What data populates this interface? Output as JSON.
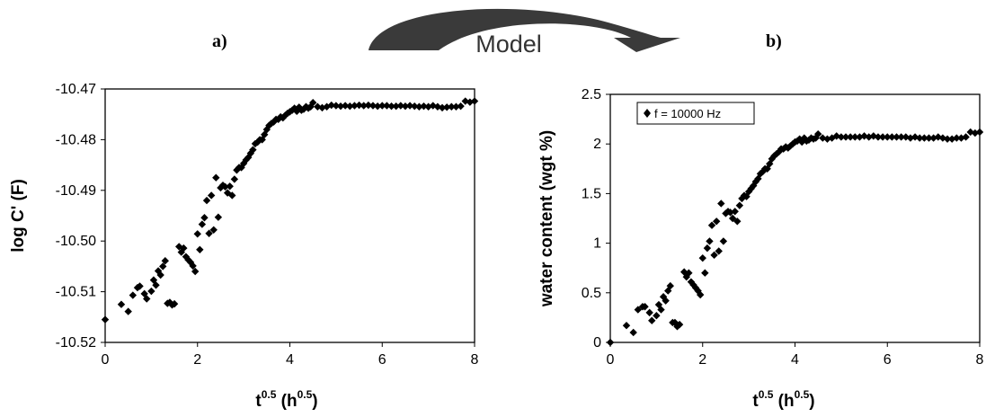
{
  "panel_labels": {
    "a": "a)",
    "b": "b)"
  },
  "arrow": {
    "label": "Model",
    "color": "#3a3a3a"
  },
  "chart_data": [
    {
      "id": "a",
      "type": "scatter",
      "title": "",
      "xlabel": {
        "base": "t",
        "base_sup": "0.5",
        "unit_open": " (h",
        "unit_sup": "0.5",
        "unit_close": ")"
      },
      "ylabel": "log C' (F)",
      "xlim": [
        0,
        8
      ],
      "ylim": [
        -10.52,
        -10.47
      ],
      "xticks": [
        0,
        2,
        4,
        6,
        8
      ],
      "yticks": [
        -10.52,
        -10.51,
        -10.5,
        -10.49,
        -10.48,
        -10.47
      ],
      "ytick_labels": [
        "-10.52",
        "-10.51",
        "-10.50",
        "-10.49",
        "-10.48",
        "-10.47"
      ],
      "marker": "diamond",
      "marker_color": "#000000",
      "grid": false,
      "series": [
        {
          "x": [
            0,
            0.35,
            0.5,
            0.6,
            0.7,
            0.75,
            0.85,
            0.9,
            1.0,
            1.05,
            1.1,
            1.15,
            1.2,
            1.25,
            1.3,
            1.35,
            1.4,
            1.45,
            1.5,
            1.6,
            1.65,
            1.7,
            1.75,
            1.8,
            1.85,
            1.9,
            1.95,
            2.0,
            2.05,
            2.1,
            2.15,
            2.2,
            2.25,
            2.3,
            2.35,
            2.4,
            2.45,
            2.5,
            2.55,
            2.6,
            2.65,
            2.7,
            2.75,
            2.8,
            2.85,
            2.9,
            2.95,
            3.0,
            3.05,
            3.1,
            3.15,
            3.2,
            3.25,
            3.3,
            3.35,
            3.4,
            3.45,
            3.5,
            3.55,
            3.6,
            3.65,
            3.7,
            3.75,
            3.8,
            3.85,
            3.9,
            3.95,
            4.0,
            4.05,
            4.1,
            4.15,
            4.2,
            4.25,
            4.3,
            4.35,
            4.4,
            4.45,
            4.5,
            4.6,
            4.7,
            4.8,
            4.9,
            5.0,
            5.1,
            5.2,
            5.3,
            5.4,
            5.5,
            5.6,
            5.7,
            5.8,
            5.9,
            6.0,
            6.1,
            6.2,
            6.3,
            6.4,
            6.5,
            6.6,
            6.7,
            6.8,
            6.9,
            7.0,
            7.1,
            7.2,
            7.3,
            7.4,
            7.5,
            7.6,
            7.7,
            7.8,
            7.9,
            8.0
          ],
          "y": [
            -10.5155,
            -10.5125,
            -10.5139,
            -10.5107,
            -10.5092,
            -10.5089,
            -10.5104,
            -10.5114,
            -10.5099,
            -10.5077,
            -10.5087,
            -10.5059,
            -10.5067,
            -10.505,
            -10.5039,
            -10.5123,
            -10.5121,
            -10.5126,
            -10.5124,
            -10.5011,
            -10.5022,
            -10.5014,
            -10.5031,
            -10.5037,
            -10.5042,
            -10.5049,
            -10.506,
            -10.4986,
            -10.5017,
            -10.4967,
            -10.4954,
            -10.492,
            -10.4985,
            -10.491,
            -10.4978,
            -10.4875,
            -10.4953,
            -10.4895,
            -10.489,
            -10.4893,
            -10.4905,
            -10.4892,
            -10.491,
            -10.4878,
            -10.486,
            -10.4855,
            -10.4855,
            -10.4847,
            -10.484,
            -10.4835,
            -10.4827,
            -10.482,
            -10.4808,
            -10.4805,
            -10.48,
            -10.48,
            -10.479,
            -10.478,
            -10.4772,
            -10.4768,
            -10.4765,
            -10.476,
            -10.476,
            -10.4755,
            -10.4757,
            -10.4752,
            -10.4748,
            -10.4745,
            -10.4742,
            -10.4738,
            -10.4744,
            -10.4736,
            -10.4742,
            -10.474,
            -10.4735,
            -10.4738,
            -10.4735,
            -10.4727,
            -10.4735,
            -10.4737,
            -10.4735,
            -10.4732,
            -10.4733,
            -10.4734,
            -10.4733,
            -10.4734,
            -10.4733,
            -10.4732,
            -10.4733,
            -10.4732,
            -10.4733,
            -10.4734,
            -10.4733,
            -10.4733,
            -10.4734,
            -10.4734,
            -10.4733,
            -10.4734,
            -10.4733,
            -10.4734,
            -10.4735,
            -10.4734,
            -10.4735,
            -10.4733,
            -10.4735,
            -10.4737,
            -10.4736,
            -10.4735,
            -10.4735,
            -10.4734,
            -10.4724,
            -10.4726,
            -10.4724
          ]
        }
      ]
    },
    {
      "id": "b",
      "type": "scatter",
      "title": "",
      "xlabel": {
        "base": "t",
        "base_sup": "0.5",
        "unit_open": " (h",
        "unit_sup": "0.5",
        "unit_close": ")"
      },
      "ylabel": "water content (wgt %)",
      "xlim": [
        0,
        8
      ],
      "ylim": [
        0,
        2.5
      ],
      "xticks": [
        0,
        2,
        4,
        6,
        8
      ],
      "yticks": [
        0,
        0.5,
        1,
        1.5,
        2,
        2.5
      ],
      "ytick_labels": [
        "0",
        "0.5",
        "1",
        "1.5",
        "2",
        "2.5"
      ],
      "marker": "diamond",
      "marker_color": "#000000",
      "grid": false,
      "legend": {
        "label": "f = 10000 Hz",
        "placement": "top-left"
      },
      "series": [
        {
          "name": "f = 10000 Hz",
          "x": [
            0,
            0.35,
            0.5,
            0.6,
            0.7,
            0.75,
            0.85,
            0.9,
            1.0,
            1.05,
            1.1,
            1.15,
            1.2,
            1.25,
            1.3,
            1.35,
            1.4,
            1.45,
            1.5,
            1.6,
            1.65,
            1.7,
            1.75,
            1.8,
            1.85,
            1.9,
            1.95,
            2.0,
            2.05,
            2.1,
            2.15,
            2.2,
            2.25,
            2.3,
            2.35,
            2.4,
            2.45,
            2.5,
            2.55,
            2.6,
            2.65,
            2.7,
            2.75,
            2.8,
            2.85,
            2.9,
            2.95,
            3.0,
            3.05,
            3.1,
            3.15,
            3.2,
            3.25,
            3.3,
            3.35,
            3.4,
            3.45,
            3.5,
            3.55,
            3.6,
            3.65,
            3.7,
            3.75,
            3.8,
            3.85,
            3.9,
            3.95,
            4.0,
            4.05,
            4.1,
            4.15,
            4.2,
            4.25,
            4.3,
            4.35,
            4.4,
            4.45,
            4.5,
            4.6,
            4.7,
            4.8,
            4.9,
            5.0,
            5.1,
            5.2,
            5.3,
            5.4,
            5.5,
            5.6,
            5.7,
            5.8,
            5.9,
            6.0,
            6.1,
            6.2,
            6.3,
            6.4,
            6.5,
            6.6,
            6.7,
            6.8,
            6.9,
            7.0,
            7.1,
            7.2,
            7.3,
            7.4,
            7.5,
            7.6,
            7.7,
            7.8,
            7.9,
            8.0
          ],
          "y": [
            0.0,
            0.17,
            0.1,
            0.33,
            0.36,
            0.36,
            0.3,
            0.22,
            0.27,
            0.38,
            0.33,
            0.46,
            0.42,
            0.52,
            0.57,
            0.2,
            0.2,
            0.16,
            0.18,
            0.71,
            0.66,
            0.7,
            0.61,
            0.58,
            0.55,
            0.52,
            0.48,
            0.85,
            0.7,
            0.95,
            1.02,
            1.18,
            0.88,
            1.22,
            0.92,
            1.4,
            1.02,
            1.3,
            1.32,
            1.31,
            1.25,
            1.32,
            1.22,
            1.38,
            1.45,
            1.48,
            1.47,
            1.52,
            1.55,
            1.58,
            1.62,
            1.65,
            1.7,
            1.72,
            1.75,
            1.75,
            1.8,
            1.85,
            1.88,
            1.9,
            1.92,
            1.95,
            1.95,
            1.97,
            1.96,
            1.98,
            2.0,
            2.02,
            2.03,
            2.05,
            2.02,
            2.06,
            2.03,
            2.04,
            2.06,
            2.05,
            2.06,
            2.1,
            2.06,
            2.05,
            2.06,
            2.08,
            2.07,
            2.07,
            2.07,
            2.07,
            2.07,
            2.08,
            2.07,
            2.08,
            2.07,
            2.07,
            2.07,
            2.07,
            2.07,
            2.07,
            2.07,
            2.06,
            2.07,
            2.06,
            2.06,
            2.06,
            2.06,
            2.07,
            2.06,
            2.05,
            2.05,
            2.06,
            2.06,
            2.07,
            2.12,
            2.11,
            2.12
          ]
        }
      ]
    }
  ]
}
